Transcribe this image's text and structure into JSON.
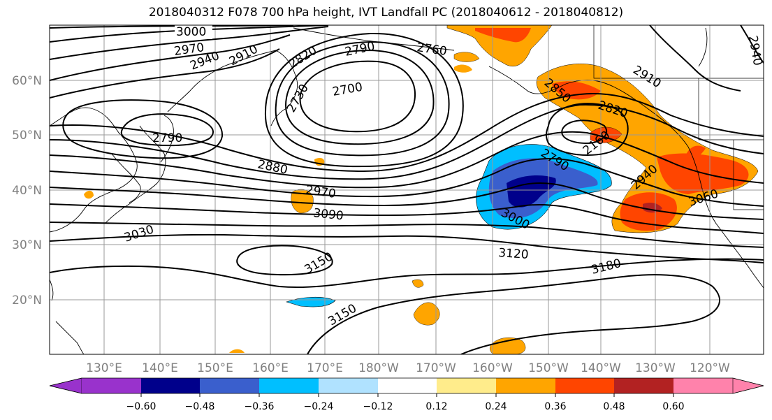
{
  "title": "2018040312 F078 700 hPa height, IVT Landfall PC (2018040612 - 2018040812)",
  "map": {
    "lat_ticks": [
      {
        "label": "60°N",
        "lat": 60
      },
      {
        "label": "50°N",
        "lat": 50
      },
      {
        "label": "40°N",
        "lat": 40
      },
      {
        "label": "30°N",
        "lat": 30
      },
      {
        "label": "20°N",
        "lat": 20
      }
    ],
    "lon_ticks": [
      {
        "label": "130°E",
        "lon": 130
      },
      {
        "label": "140°E",
        "lon": 140
      },
      {
        "label": "150°E",
        "lon": 150
      },
      {
        "label": "160°E",
        "lon": 160
      },
      {
        "label": "170°E",
        "lon": 170
      },
      {
        "label": "180°W",
        "lon": 180
      },
      {
        "label": "170°W",
        "lon": 190
      },
      {
        "label": "160°W",
        "lon": 200
      },
      {
        "label": "150°W",
        "lon": 210
      },
      {
        "label": "140°W",
        "lon": 220
      },
      {
        "label": "130°W",
        "lon": 230
      },
      {
        "label": "120°W",
        "lon": 240
      }
    ],
    "contour_labels": [
      {
        "text": "3000"
      },
      {
        "text": "2970"
      },
      {
        "text": "2940"
      },
      {
        "text": "2910"
      },
      {
        "text": "2820"
      },
      {
        "text": "2790"
      },
      {
        "text": "2760"
      },
      {
        "text": "2730"
      },
      {
        "text": "2700"
      },
      {
        "text": "2790"
      },
      {
        "text": "2880"
      },
      {
        "text": "2970"
      },
      {
        "text": "3090"
      },
      {
        "text": "3030"
      },
      {
        "text": "3150"
      },
      {
        "text": "3150"
      },
      {
        "text": "3000"
      },
      {
        "text": "2790"
      },
      {
        "text": "2850"
      },
      {
        "text": "2820"
      },
      {
        "text": "2910"
      },
      {
        "text": "2160"
      },
      {
        "text": "2940"
      },
      {
        "text": "3060"
      },
      {
        "text": "3120"
      },
      {
        "text": "3180"
      },
      {
        "text": "2940"
      }
    ]
  },
  "colorbar": {
    "colors": [
      "#9932cc",
      "#00008b",
      "#3a5fcd",
      "#00bfff",
      "#b0e2ff",
      "#ffffff",
      "#ffec8b",
      "#ffa500",
      "#ff4500",
      "#b22222",
      "#ff82ab"
    ],
    "labels": [
      "−0.60",
      "−0.48",
      "−0.36",
      "−0.24",
      "−0.12",
      "0.12",
      "0.24",
      "0.36",
      "0.48",
      "0.60"
    ]
  }
}
